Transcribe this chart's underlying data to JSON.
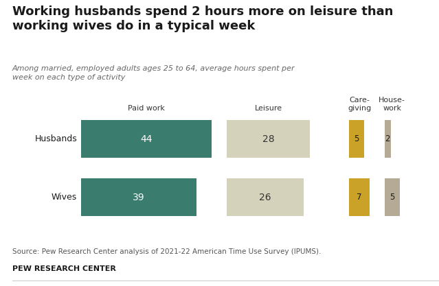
{
  "title": "Working husbands spend 2 hours more on leisure than\nworking wives do in a typical week",
  "subtitle": "Among married, employed adults ages 25 to 64, average hours spent per\nweek on each type of activity",
  "source": "Source: Pew Research Center analysis of 2021-22 American Time Use Survey (IPUMS).",
  "branding": "PEW RESEARCH CENTER",
  "rows": [
    "Husbands",
    "Wives"
  ],
  "col_headers": [
    "Paid work",
    "Leisure",
    "Care-\ngiving",
    "House-\nwork"
  ],
  "values": [
    [
      44,
      28,
      5,
      2
    ],
    [
      39,
      26,
      7,
      5
    ]
  ],
  "bar_colors": [
    "#3a7d6e",
    "#d5d2bc",
    "#c9a227",
    "#b5aa95"
  ],
  "text_colors": [
    "#ffffff",
    "#333333",
    "#1a1a1a",
    "#1a1a1a"
  ],
  "background_color": "#ffffff",
  "title_color": "#1a1a1a",
  "subtitle_color": "#666666",
  "source_color": "#555555",
  "row_label_color": "#1a1a1a"
}
